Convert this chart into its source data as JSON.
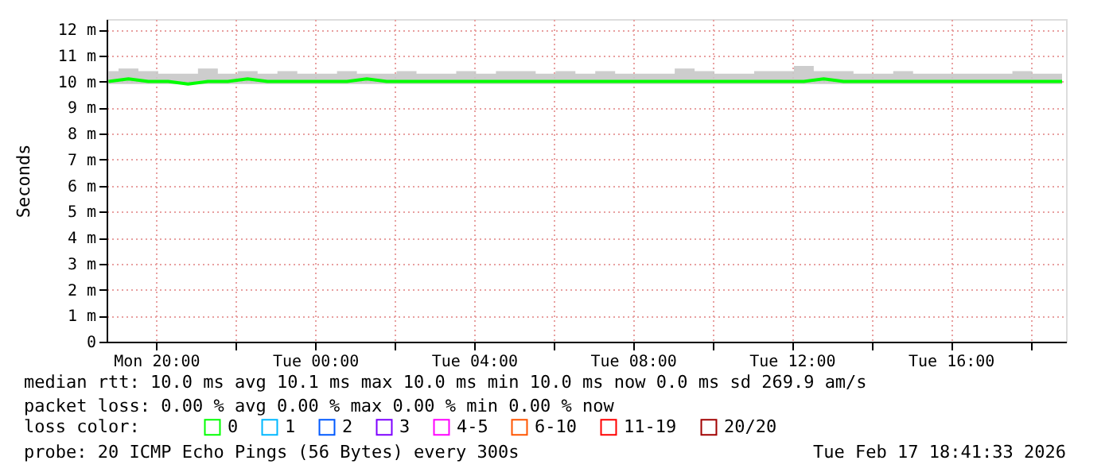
{
  "chart_data": {
    "type": "line",
    "ylabel": "Seconds",
    "legend_title": "loss color:",
    "x": [
      "2026-02-16T18:48",
      "2026-02-16T19:18",
      "2026-02-16T19:48",
      "2026-02-16T20:18",
      "2026-02-16T20:48",
      "2026-02-16T21:18",
      "2026-02-16T21:48",
      "2026-02-16T22:18",
      "2026-02-16T22:48",
      "2026-02-16T23:18",
      "2026-02-16T23:48",
      "2026-02-17T00:18",
      "2026-02-17T00:48",
      "2026-02-17T01:18",
      "2026-02-17T01:48",
      "2026-02-17T02:18",
      "2026-02-17T02:48",
      "2026-02-17T03:18",
      "2026-02-17T03:48",
      "2026-02-17T04:18",
      "2026-02-17T04:48",
      "2026-02-17T05:18",
      "2026-02-17T05:48",
      "2026-02-17T06:18",
      "2026-02-17T06:48",
      "2026-02-17T07:18",
      "2026-02-17T07:48",
      "2026-02-17T08:18",
      "2026-02-17T08:48",
      "2026-02-17T09:18",
      "2026-02-17T09:48",
      "2026-02-17T10:18",
      "2026-02-17T10:48",
      "2026-02-17T11:18",
      "2026-02-17T11:48",
      "2026-02-17T12:18",
      "2026-02-17T12:48",
      "2026-02-17T13:18",
      "2026-02-17T13:48",
      "2026-02-17T14:18",
      "2026-02-17T14:48",
      "2026-02-17T15:18",
      "2026-02-17T15:48",
      "2026-02-17T16:18",
      "2026-02-17T16:48",
      "2026-02-17T17:18",
      "2026-02-17T17:48",
      "2026-02-17T18:18",
      "2026-02-17T18:48"
    ],
    "series": [
      {
        "name": "0",
        "color": "#00ff00",
        "values": [
          10.0,
          10.1,
          10.0,
          10.0,
          9.9,
          10.0,
          10.0,
          10.1,
          10.0,
          10.0,
          10.0,
          10.0,
          10.0,
          10.1,
          10.0,
          10.0,
          10.0,
          10.0,
          10.0,
          10.0,
          10.0,
          10.0,
          10.0,
          10.0,
          10.0,
          10.0,
          10.0,
          10.0,
          10.0,
          10.0,
          10.0,
          10.0,
          10.0,
          10.0,
          10.0,
          10.0,
          10.1,
          10.0,
          10.0,
          10.0,
          10.0,
          10.0,
          10.0,
          10.0,
          10.0,
          10.0,
          10.0,
          10.0,
          10.0
        ],
        "lower": [
          9.9,
          9.9,
          9.9,
          9.9,
          9.9,
          9.9,
          9.9,
          9.9,
          9.9,
          9.9,
          9.9,
          9.9,
          9.9,
          9.9,
          9.9,
          9.9,
          9.9,
          9.9,
          9.9,
          9.9,
          9.9,
          9.9,
          9.9,
          9.9,
          9.9,
          9.9,
          9.9,
          9.9,
          9.9,
          9.9,
          9.9,
          9.9,
          9.9,
          9.9,
          9.9,
          9.9,
          9.9,
          9.9,
          9.9,
          9.9,
          9.9,
          9.9,
          9.9,
          9.9,
          9.9,
          9.9,
          9.9,
          9.9,
          9.9
        ],
        "upper": [
          10.4,
          10.5,
          10.4,
          10.3,
          10.3,
          10.5,
          10.3,
          10.4,
          10.3,
          10.4,
          10.3,
          10.3,
          10.4,
          10.3,
          10.3,
          10.4,
          10.3,
          10.3,
          10.4,
          10.3,
          10.4,
          10.4,
          10.3,
          10.4,
          10.3,
          10.4,
          10.3,
          10.3,
          10.3,
          10.5,
          10.4,
          10.3,
          10.3,
          10.4,
          10.4,
          10.6,
          10.4,
          10.4,
          10.3,
          10.3,
          10.4,
          10.3,
          10.3,
          10.3,
          10.3,
          10.3,
          10.4,
          10.3,
          10.3
        ]
      },
      {
        "name": "1",
        "color": "#00b8ff",
        "values": [
          null,
          null,
          null,
          null,
          null,
          null,
          null,
          null,
          null,
          null,
          null,
          null,
          null,
          null,
          null,
          null,
          null,
          null,
          null,
          null,
          null,
          null,
          null,
          null,
          null,
          null,
          null,
          null,
          null,
          null,
          null,
          null,
          null,
          null,
          null,
          null,
          null,
          null,
          null,
          null,
          null,
          null,
          null,
          null,
          null,
          null,
          null,
          null,
          null
        ]
      },
      {
        "name": "2",
        "color": "#0059ff",
        "values": [
          null,
          null,
          null,
          null,
          null,
          null,
          null,
          null,
          null,
          null,
          null,
          null,
          null,
          null,
          null,
          null,
          null,
          null,
          null,
          null,
          null,
          null,
          null,
          null,
          null,
          null,
          null,
          null,
          null,
          null,
          null,
          null,
          null,
          null,
          null,
          null,
          null,
          null,
          null,
          null,
          null,
          null,
          null,
          null,
          null,
          null,
          null,
          null,
          null
        ]
      },
      {
        "name": "3",
        "color": "#7e00ff",
        "values": [
          null,
          null,
          null,
          null,
          null,
          null,
          null,
          null,
          null,
          null,
          null,
          null,
          null,
          null,
          null,
          null,
          null,
          null,
          null,
          null,
          null,
          null,
          null,
          null,
          null,
          null,
          null,
          null,
          null,
          null,
          null,
          null,
          null,
          null,
          null,
          null,
          null,
          null,
          null,
          null,
          null,
          null,
          null,
          null,
          null,
          null,
          null,
          null,
          null
        ]
      },
      {
        "name": "4-5",
        "color": "#ff00ff",
        "values": [
          null,
          null,
          null,
          null,
          null,
          null,
          null,
          null,
          null,
          null,
          null,
          null,
          null,
          null,
          null,
          null,
          null,
          null,
          null,
          null,
          null,
          null,
          null,
          null,
          null,
          null,
          null,
          null,
          null,
          null,
          null,
          null,
          null,
          null,
          null,
          null,
          null,
          null,
          null,
          null,
          null,
          null,
          null,
          null,
          null,
          null,
          null,
          null,
          null
        ]
      },
      {
        "name": "6-10",
        "color": "#ff5500",
        "values": [
          null,
          null,
          null,
          null,
          null,
          null,
          null,
          null,
          null,
          null,
          null,
          null,
          null,
          null,
          null,
          null,
          null,
          null,
          null,
          null,
          null,
          null,
          null,
          null,
          null,
          null,
          null,
          null,
          null,
          null,
          null,
          null,
          null,
          null,
          null,
          null,
          null,
          null,
          null,
          null,
          null,
          null,
          null,
          null,
          null,
          null,
          null,
          null,
          null
        ]
      },
      {
        "name": "11-19",
        "color": "#ff0000",
        "values": [
          null,
          null,
          null,
          null,
          null,
          null,
          null,
          null,
          null,
          null,
          null,
          null,
          null,
          null,
          null,
          null,
          null,
          null,
          null,
          null,
          null,
          null,
          null,
          null,
          null,
          null,
          null,
          null,
          null,
          null,
          null,
          null,
          null,
          null,
          null,
          null,
          null,
          null,
          null,
          null,
          null,
          null,
          null,
          null,
          null,
          null,
          null,
          null,
          null
        ]
      },
      {
        "name": "20/20",
        "color": "#a10000",
        "values": [
          null,
          null,
          null,
          null,
          null,
          null,
          null,
          null,
          null,
          null,
          null,
          null,
          null,
          null,
          null,
          null,
          null,
          null,
          null,
          null,
          null,
          null,
          null,
          null,
          null,
          null,
          null,
          null,
          null,
          null,
          null,
          null,
          null,
          null,
          null,
          null,
          null,
          null,
          null,
          null,
          null,
          null,
          null,
          null,
          null,
          null,
          null,
          null,
          null
        ]
      }
    ],
    "xlim": [
      "2026-02-16T18:45",
      "2026-02-17T18:54"
    ],
    "xticks": [
      {
        "value": "2026-02-16T20:00",
        "label": "Mon 20:00"
      },
      {
        "value": "2026-02-16T22:00",
        "label": null
      },
      {
        "value": "2026-02-17T00:00",
        "label": "Tue 00:00"
      },
      {
        "value": "2026-02-17T02:00",
        "label": null
      },
      {
        "value": "2026-02-17T04:00",
        "label": "Tue 04:00"
      },
      {
        "value": "2026-02-17T06:00",
        "label": null
      },
      {
        "value": "2026-02-17T08:00",
        "label": "Tue 08:00"
      },
      {
        "value": "2026-02-17T10:00",
        "label": null
      },
      {
        "value": "2026-02-17T12:00",
        "label": "Tue 12:00"
      },
      {
        "value": "2026-02-17T14:00",
        "label": null
      },
      {
        "value": "2026-02-17T16:00",
        "label": "Tue 16:00"
      },
      {
        "value": "2026-02-17T18:00",
        "label": null
      }
    ],
    "ylim": [
      0,
      12.4
    ],
    "yticks": [
      0,
      {
        "value": 1,
        "label": "1 m"
      },
      {
        "value": 2,
        "label": "2 m"
      },
      {
        "value": 3,
        "label": "3 m"
      },
      {
        "value": 4,
        "label": "4 m"
      },
      {
        "value": 5,
        "label": "5 m"
      },
      {
        "value": 6,
        "label": "6 m"
      },
      {
        "value": 7,
        "label": "7 m"
      },
      {
        "value": 8,
        "label": "8 m"
      },
      {
        "value": 9,
        "label": "9 m"
      },
      {
        "value": 10,
        "label": "10 m"
      },
      {
        "value": 11,
        "label": "11 m"
      },
      {
        "value": 12,
        "label": "12 m"
      }
    ],
    "grid": true,
    "legend": "bottom",
    "line_style": "solid",
    "marker": "none",
    "annotations": [
      "median rtt:  10.0 ms avg  10.1 ms max  10.0 ms min  10.0 ms now  0.0 ms sd  269.9   am/s",
      "packet loss: 0.00 % avg  0.00 % max  0.00 % min  0.00 % now",
      "probe:       20 ICMP Echo Pings (56 Bytes) every 300s",
      "Tue Feb 17 18:41:33 2026"
    ]
  }
}
